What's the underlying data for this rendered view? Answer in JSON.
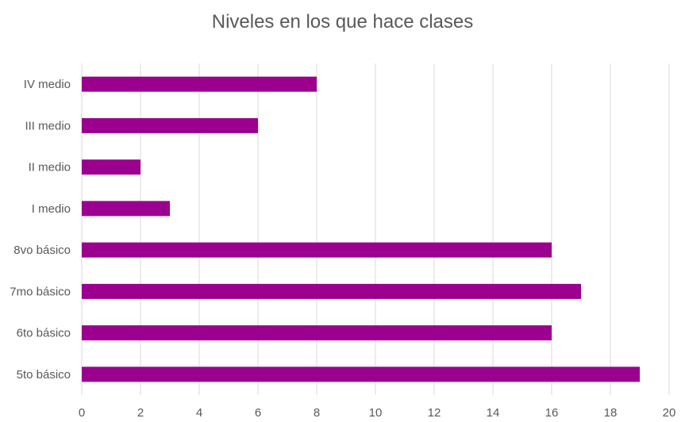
{
  "chart_data": {
    "type": "bar",
    "orientation": "horizontal",
    "title": "Niveles en los que hace clases",
    "categories": [
      "IV medio",
      "III medio",
      "II medio",
      "I medio",
      "8vo básico",
      "7mo básico",
      "6to básico",
      "5to básico"
    ],
    "values": [
      8,
      6,
      2,
      3,
      16,
      17,
      16,
      19
    ],
    "xlim": [
      0,
      20
    ],
    "xticks": [
      0,
      2,
      4,
      6,
      8,
      10,
      12,
      14,
      16,
      18,
      20
    ],
    "xtick_labels": [
      "0",
      "2",
      "4",
      "6",
      "8",
      "10",
      "12",
      "14",
      "16",
      "18",
      "20"
    ],
    "grid": "vertical",
    "legend": "none",
    "bar_color": "#9B008F",
    "grid_color": "#D9D9D9",
    "text_color": "#595959"
  }
}
